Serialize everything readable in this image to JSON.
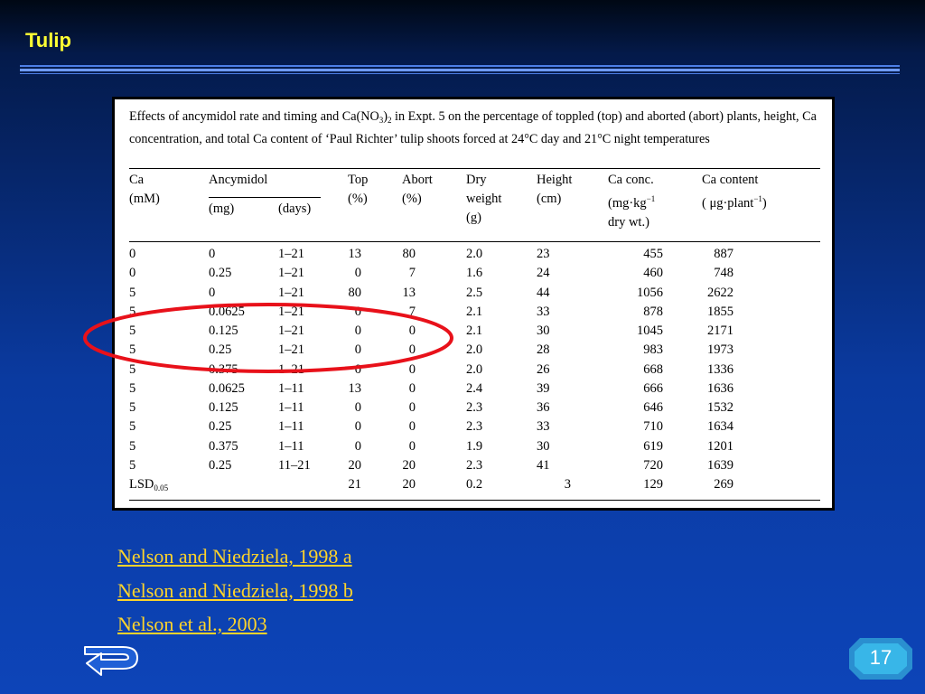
{
  "slide": {
    "title": "Tulip",
    "page_number": "17",
    "colors": {
      "title": "#ffff33",
      "link": "#ffd42a",
      "ellipse": "#e8111a",
      "badge": "#38b6e8"
    }
  },
  "table": {
    "caption_parts": [
      "Effects of ancymidol rate and timing and Ca(NO",
      "3",
      ")",
      "2",
      " in Expt. 5 on the percentage of toppled (top) and aborted (abort) plants, height, Ca concentration, and total Ca content of ‘Paul Richter’ tulip shoots forced at 24°C day and 21°C night temperatures"
    ],
    "headers": {
      "ca": [
        "Ca",
        "(mM)"
      ],
      "ancymidol": "Ancymidol",
      "mg": "(mg)",
      "days": "(days)",
      "top": [
        "Top",
        "(%)"
      ],
      "abort": [
        "Abort",
        "(%)"
      ],
      "dry": [
        "Dry",
        "weight",
        "(g)"
      ],
      "height": [
        "Height",
        "(cm)"
      ],
      "conc": [
        "Ca conc.",
        "(mg·kg",
        "−1",
        "dry wt.)"
      ],
      "content": [
        "Ca content",
        "( μg·plant",
        "−1",
        ")"
      ]
    },
    "rows": [
      [
        "0",
        "0",
        "1–21",
        "13",
        "80",
        "2.0",
        "23",
        "455",
        "887"
      ],
      [
        "0",
        "0.25",
        "1–21",
        "0",
        "7",
        "1.6",
        "24",
        "460",
        "748"
      ],
      [
        "5",
        "0",
        "1–21",
        "80",
        "13",
        "2.5",
        "44",
        "1056",
        "2622"
      ],
      [
        "5",
        "0.0625",
        "1–21",
        "0",
        "7",
        "2.1",
        "33",
        "878",
        "1855"
      ],
      [
        "5",
        "0.125",
        "1–21",
        "0",
        "0",
        "2.1",
        "30",
        "1045",
        "2171"
      ],
      [
        "5",
        "0.25",
        "1–21",
        "0",
        "0",
        "2.0",
        "28",
        "983",
        "1973"
      ],
      [
        "5",
        "0.375",
        "1–21",
        "0",
        "0",
        "2.0",
        "26",
        "668",
        "1336"
      ],
      [
        "5",
        "0.0625",
        "1–11",
        "13",
        "0",
        "2.4",
        "39",
        "666",
        "1636"
      ],
      [
        "5",
        "0.125",
        "1–11",
        "0",
        "0",
        "2.3",
        "36",
        "646",
        "1532"
      ],
      [
        "5",
        "0.25",
        "1–11",
        "0",
        "0",
        "2.3",
        "33",
        "710",
        "1634"
      ],
      [
        "5",
        "0.375",
        "1–11",
        "0",
        "0",
        "1.9",
        "30",
        "619",
        "1201"
      ],
      [
        "5",
        "0.25",
        "11–21",
        "20",
        "20",
        "2.3",
        "41",
        "720",
        "1639"
      ]
    ],
    "lsd": {
      "label": "LSD",
      "subscript": "0.05",
      "values": [
        "21",
        "20",
        "0.2",
        "3",
        "129",
        "269"
      ]
    }
  },
  "references": [
    "Nelson and Niedziela, 1998 a",
    "Nelson and Niedziela, 1998 b",
    "Nelson et al., 2003"
  ]
}
